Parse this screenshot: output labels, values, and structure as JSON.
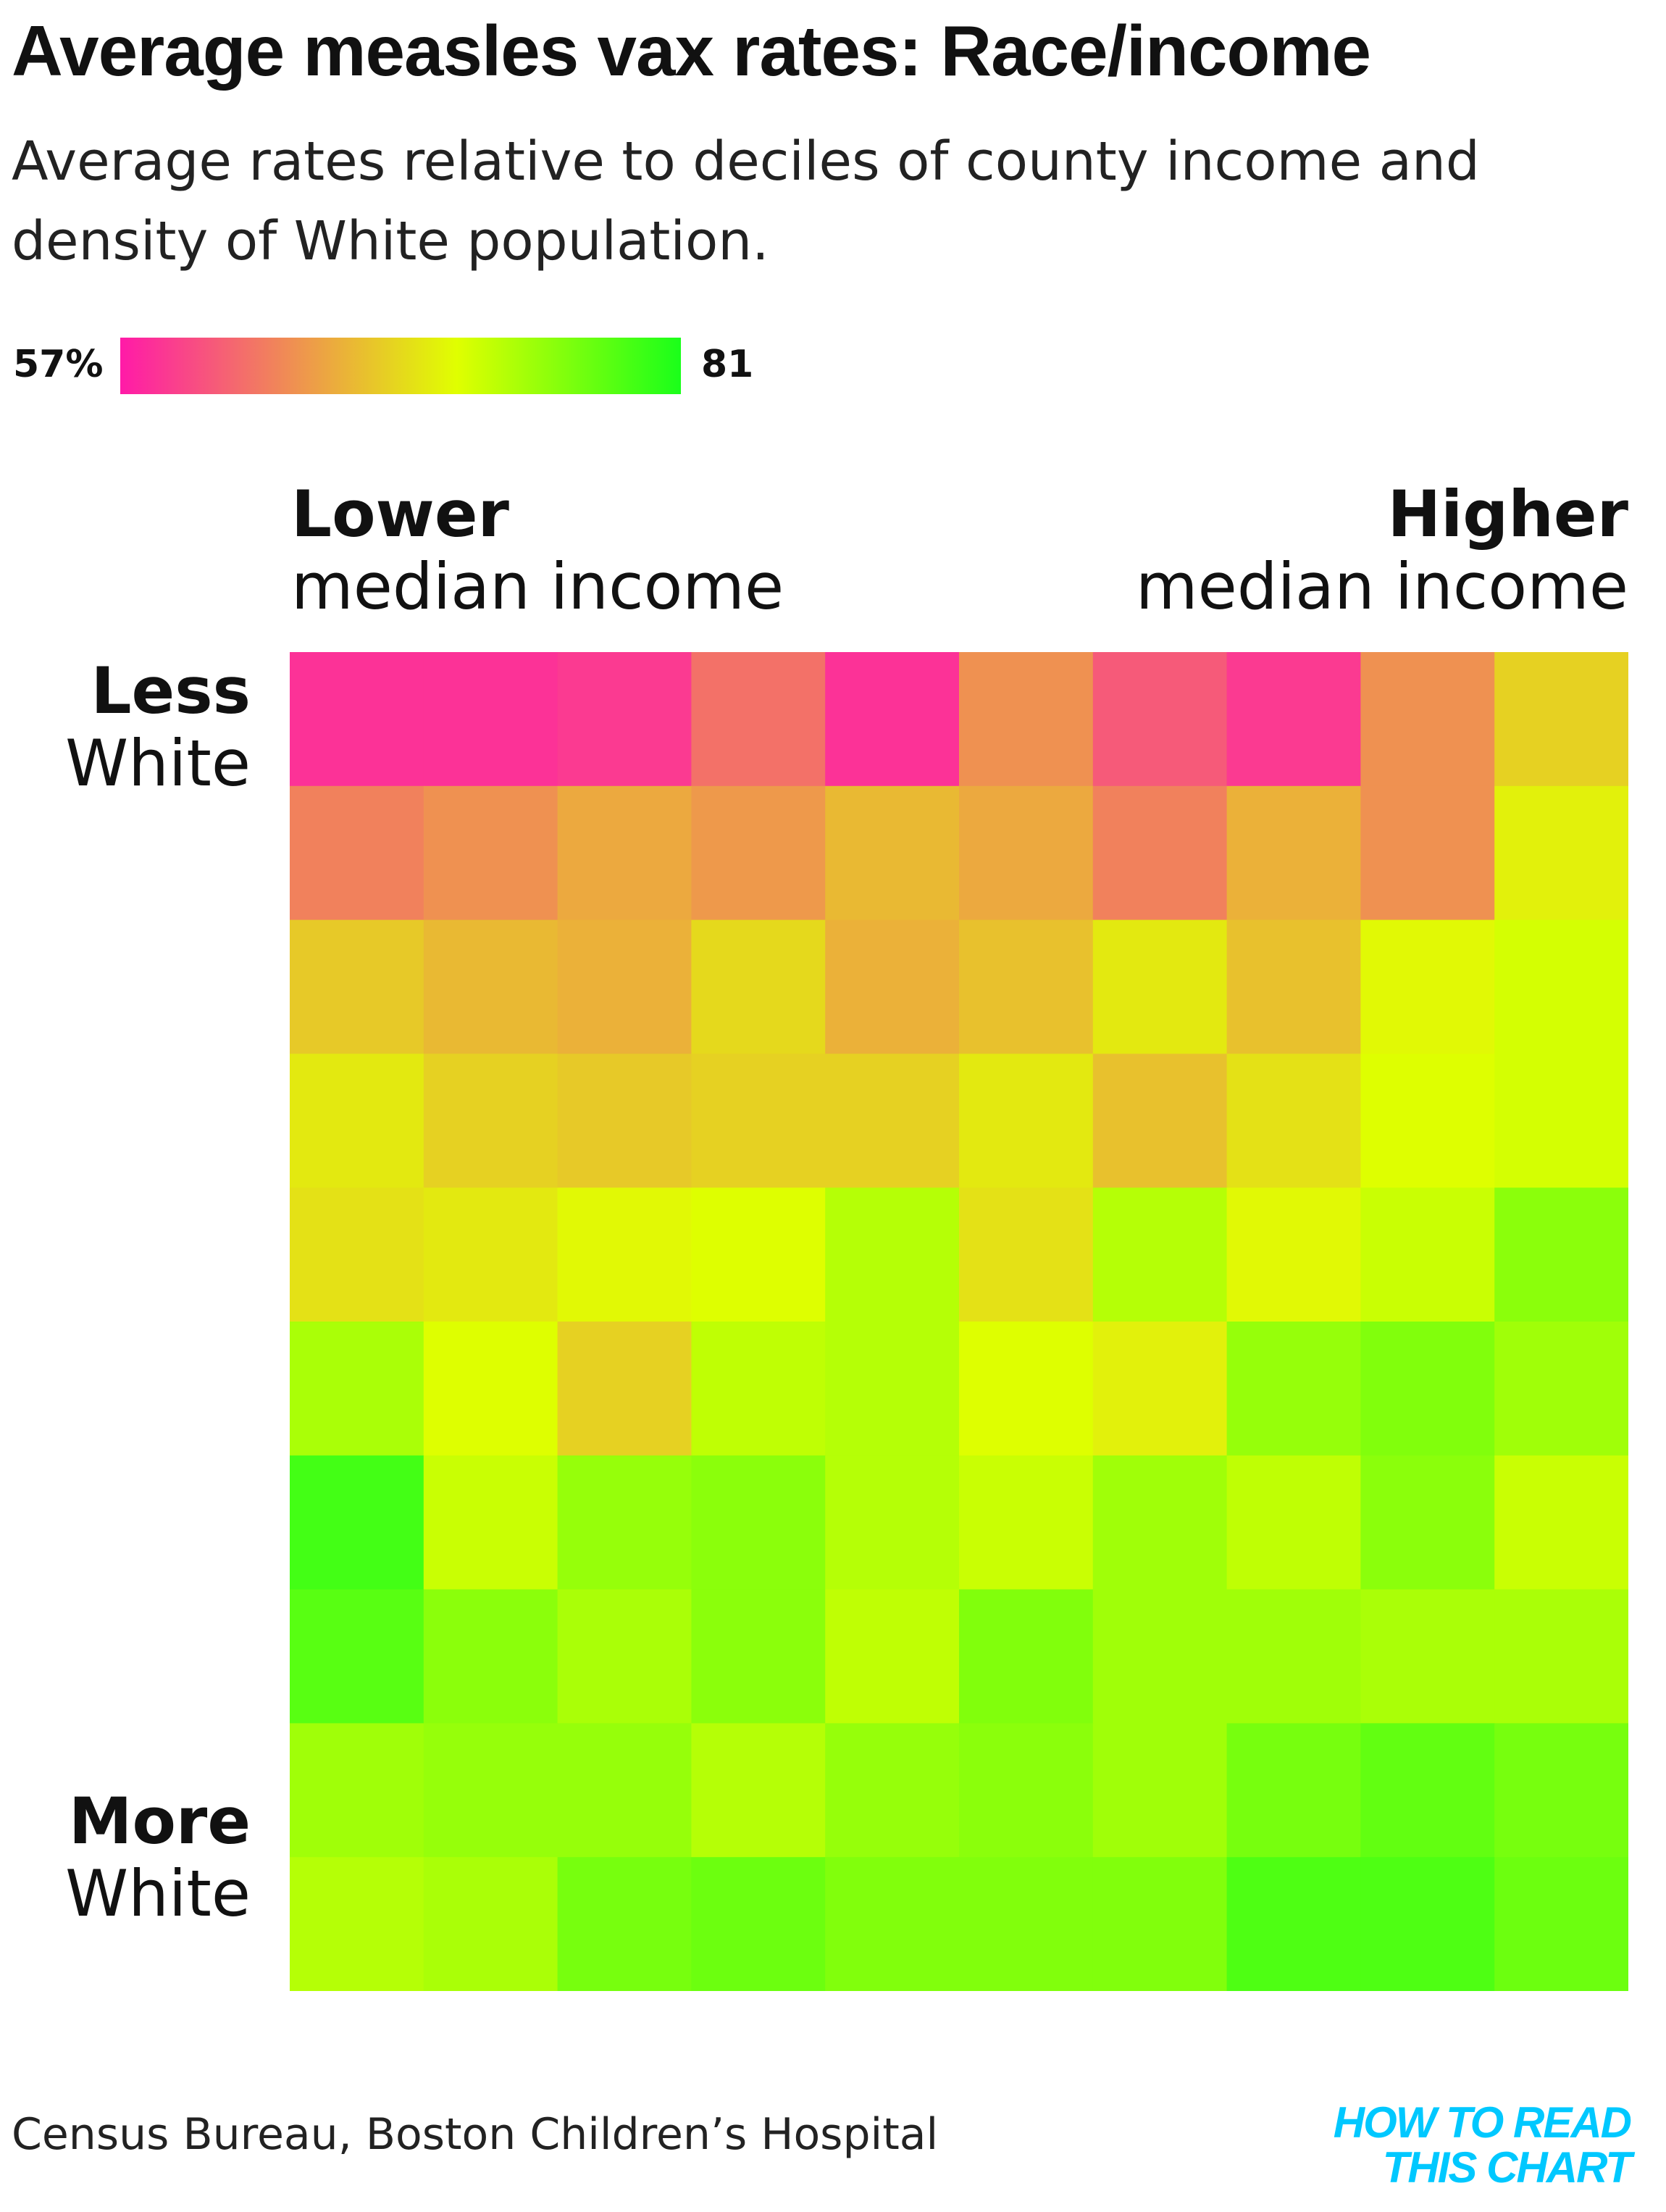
{
  "title": "Average measles vax rates: Race/income",
  "subtitle": "Average rates relative to deciles of county income and density of White population.",
  "colors": {
    "low": "#ff1aa8",
    "mid": "#e0ff00",
    "high": "#1aff1a",
    "logo": "#00c8ff"
  },
  "scale": {
    "min_label": "57%",
    "max_label": "81"
  },
  "logo": {
    "line1": "HOW TO READ",
    "line2": "THIS CHART"
  },
  "source": "Census Bureau, Boston Children’s Hospital",
  "chart_data": {
    "type": "heatmap",
    "title": "Average measles vax rates: Race/income",
    "subtitle": "Average rates relative to deciles of county income and density of White population.",
    "x_axis": {
      "low_label_bold": "Lower",
      "low_label": "median income",
      "high_label_bold": "Higher",
      "high_label": "median income"
    },
    "y_axis": {
      "top_label_bold": "Less",
      "top_label": "White",
      "bottom_label_bold": "More",
      "bottom_label": "White"
    },
    "color_scale": {
      "min": 57,
      "max": 81,
      "min_label": "57%",
      "max_label": "81"
    },
    "values": [
      [
        58.5,
        58.5,
        59.0,
        62.5,
        58.5,
        64.5,
        61.0,
        59.0,
        64.5,
        68.5
      ],
      [
        63.5,
        64.5,
        66.0,
        65.0,
        67.0,
        66.0,
        63.5,
        66.5,
        64.5,
        70.5
      ],
      [
        68.0,
        67.0,
        66.5,
        69.0,
        66.5,
        67.5,
        70.0,
        67.5,
        71.0,
        72.0
      ],
      [
        70.0,
        68.5,
        68.0,
        68.5,
        68.5,
        70.0,
        67.5,
        69.5,
        71.5,
        72.0
      ],
      [
        69.5,
        70.0,
        71.0,
        71.5,
        73.5,
        69.5,
        73.5,
        71.0,
        72.5,
        75.5
      ],
      [
        74.0,
        71.5,
        68.5,
        73.0,
        73.5,
        71.5,
        70.5,
        75.0,
        76.0,
        74.5
      ],
      [
        79.0,
        72.5,
        75.0,
        75.5,
        73.5,
        72.5,
        74.5,
        73.0,
        75.5,
        72.5
      ],
      [
        78.0,
        75.5,
        74.0,
        75.5,
        73.0,
        76.0,
        74.5,
        74.5,
        74.0,
        74.0
      ],
      [
        74.5,
        75.0,
        75.0,
        73.5,
        75.0,
        75.5,
        74.5,
        76.5,
        77.5,
        76.5
      ],
      [
        73.5,
        74.0,
        76.5,
        77.0,
        76.0,
        76.0,
        76.0,
        78.5,
        78.5,
        77.0
      ]
    ]
  }
}
